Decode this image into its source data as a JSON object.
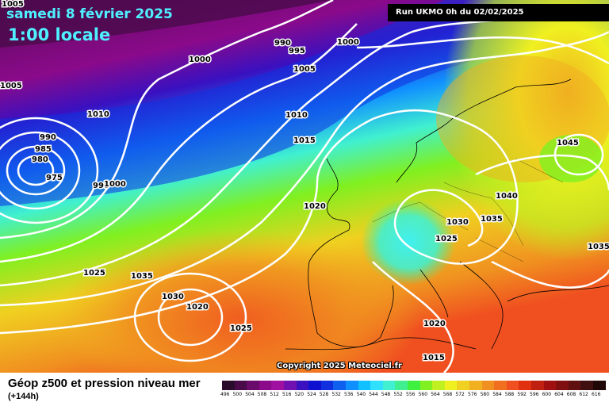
{
  "header": {
    "date": "samedi 8 février 2025",
    "time": "1:00 locale",
    "run": "Run UKMO 0h du 02/02/2025"
  },
  "copyright": "Copyright 2025 Meteociel.fr",
  "footer": {
    "title": "Géop z500 et pression niveau mer",
    "subtitle": "(+144h)"
  },
  "isobar_labels": [
    "1005",
    "1005",
    "1000",
    "990",
    "995",
    "1000",
    "1005",
    "1010",
    "1010",
    "990",
    "985",
    "980",
    "975",
    "995",
    "1000",
    "1015",
    "1020",
    "1025",
    "1035",
    "1030",
    "1020",
    "1025",
    "1030",
    "1035",
    "1025",
    "1040",
    "1045",
    "1035",
    "1020",
    "1015"
  ],
  "legend": {
    "values": [
      "496",
      "500",
      "504",
      "508",
      "512",
      "516",
      "520",
      "524",
      "528",
      "532",
      "536",
      "540",
      "544",
      "548",
      "552",
      "556",
      "560",
      "564",
      "568",
      "572",
      "576",
      "580",
      "584",
      "588",
      "592",
      "596",
      "600",
      "604",
      "608",
      "612",
      "616"
    ],
    "colors": [
      "#2b0b2b",
      "#4a0a4a",
      "#6a0a6a",
      "#8a0a8a",
      "#a010a0",
      "#7010b0",
      "#3a10c0",
      "#1010d0",
      "#1030e0",
      "#1060f0",
      "#1090ff",
      "#10c0ff",
      "#30e0ff",
      "#40f0d0",
      "#40f090",
      "#40f040",
      "#80f020",
      "#c0f020",
      "#f0f020",
      "#f0d020",
      "#f0b020",
      "#f09020",
      "#f07020",
      "#f05020",
      "#e03010",
      "#c02010",
      "#a01010",
      "#801010",
      "#601010",
      "#401010",
      "#200808"
    ]
  }
}
